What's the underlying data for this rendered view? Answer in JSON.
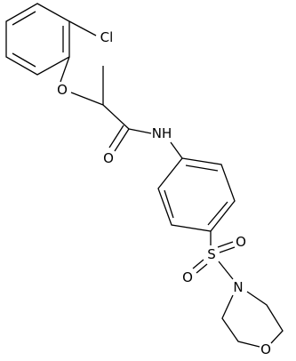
{
  "atoms": {
    "chlorine": "Cl",
    "ether_oxygen": "O",
    "carbonyl_oxygen": "O",
    "amide_nitrogen": "NH",
    "sulfur": "S",
    "sulfonyl_oxygen_left": "O",
    "sulfonyl_oxygen_right": "O",
    "morpholine_nitrogen": "N",
    "morpholine_oxygen": "O"
  }
}
